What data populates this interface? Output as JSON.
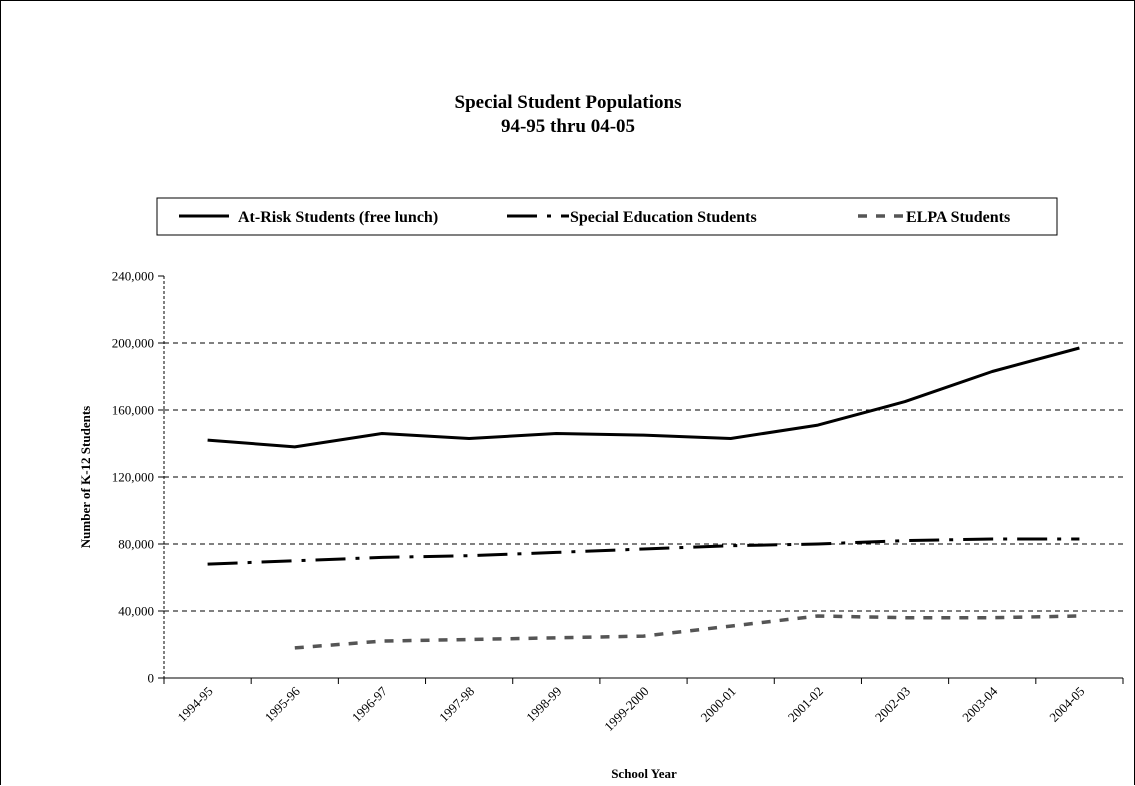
{
  "chart_data": {
    "type": "line",
    "title": "Special Student Populations",
    "subtitle": "94-95 thru 04-05",
    "xlabel": "School Year",
    "ylabel": "Number of K-12 Students",
    "categories": [
      "1994-95",
      "1995-96",
      "1996-97",
      "1997-98",
      "1998-99",
      "1999-2000",
      "2000-01",
      "2001-02",
      "2002-03",
      "2003-04",
      "2004-05"
    ],
    "ylim": [
      0,
      240000
    ],
    "y_ticks": [
      0,
      40000,
      80000,
      120000,
      160000,
      200000,
      240000
    ],
    "y_tick_labels": [
      "0",
      "40,000",
      "80,000",
      "120,000",
      "160,000",
      "200,000",
      "240,000"
    ],
    "grid": "horizontal dashed",
    "legend_position": "top",
    "series": [
      {
        "name": "At-Risk Students (free lunch)",
        "style": "solid",
        "color": "#000000",
        "values": [
          142000,
          138000,
          146000,
          143000,
          146000,
          145000,
          143000,
          151000,
          165000,
          183000,
          197000
        ]
      },
      {
        "name": "Special Education Students",
        "style": "dash-dot",
        "color": "#000000",
        "values": [
          68000,
          70000,
          72000,
          73000,
          75000,
          77000,
          79000,
          80000,
          82000,
          83000,
          83000
        ]
      },
      {
        "name": "ELPA Students",
        "style": "dotted",
        "color": "#555555",
        "values": [
          null,
          18000,
          22000,
          23000,
          24000,
          25000,
          31000,
          37000,
          36000,
          36000,
          37000
        ]
      }
    ]
  }
}
